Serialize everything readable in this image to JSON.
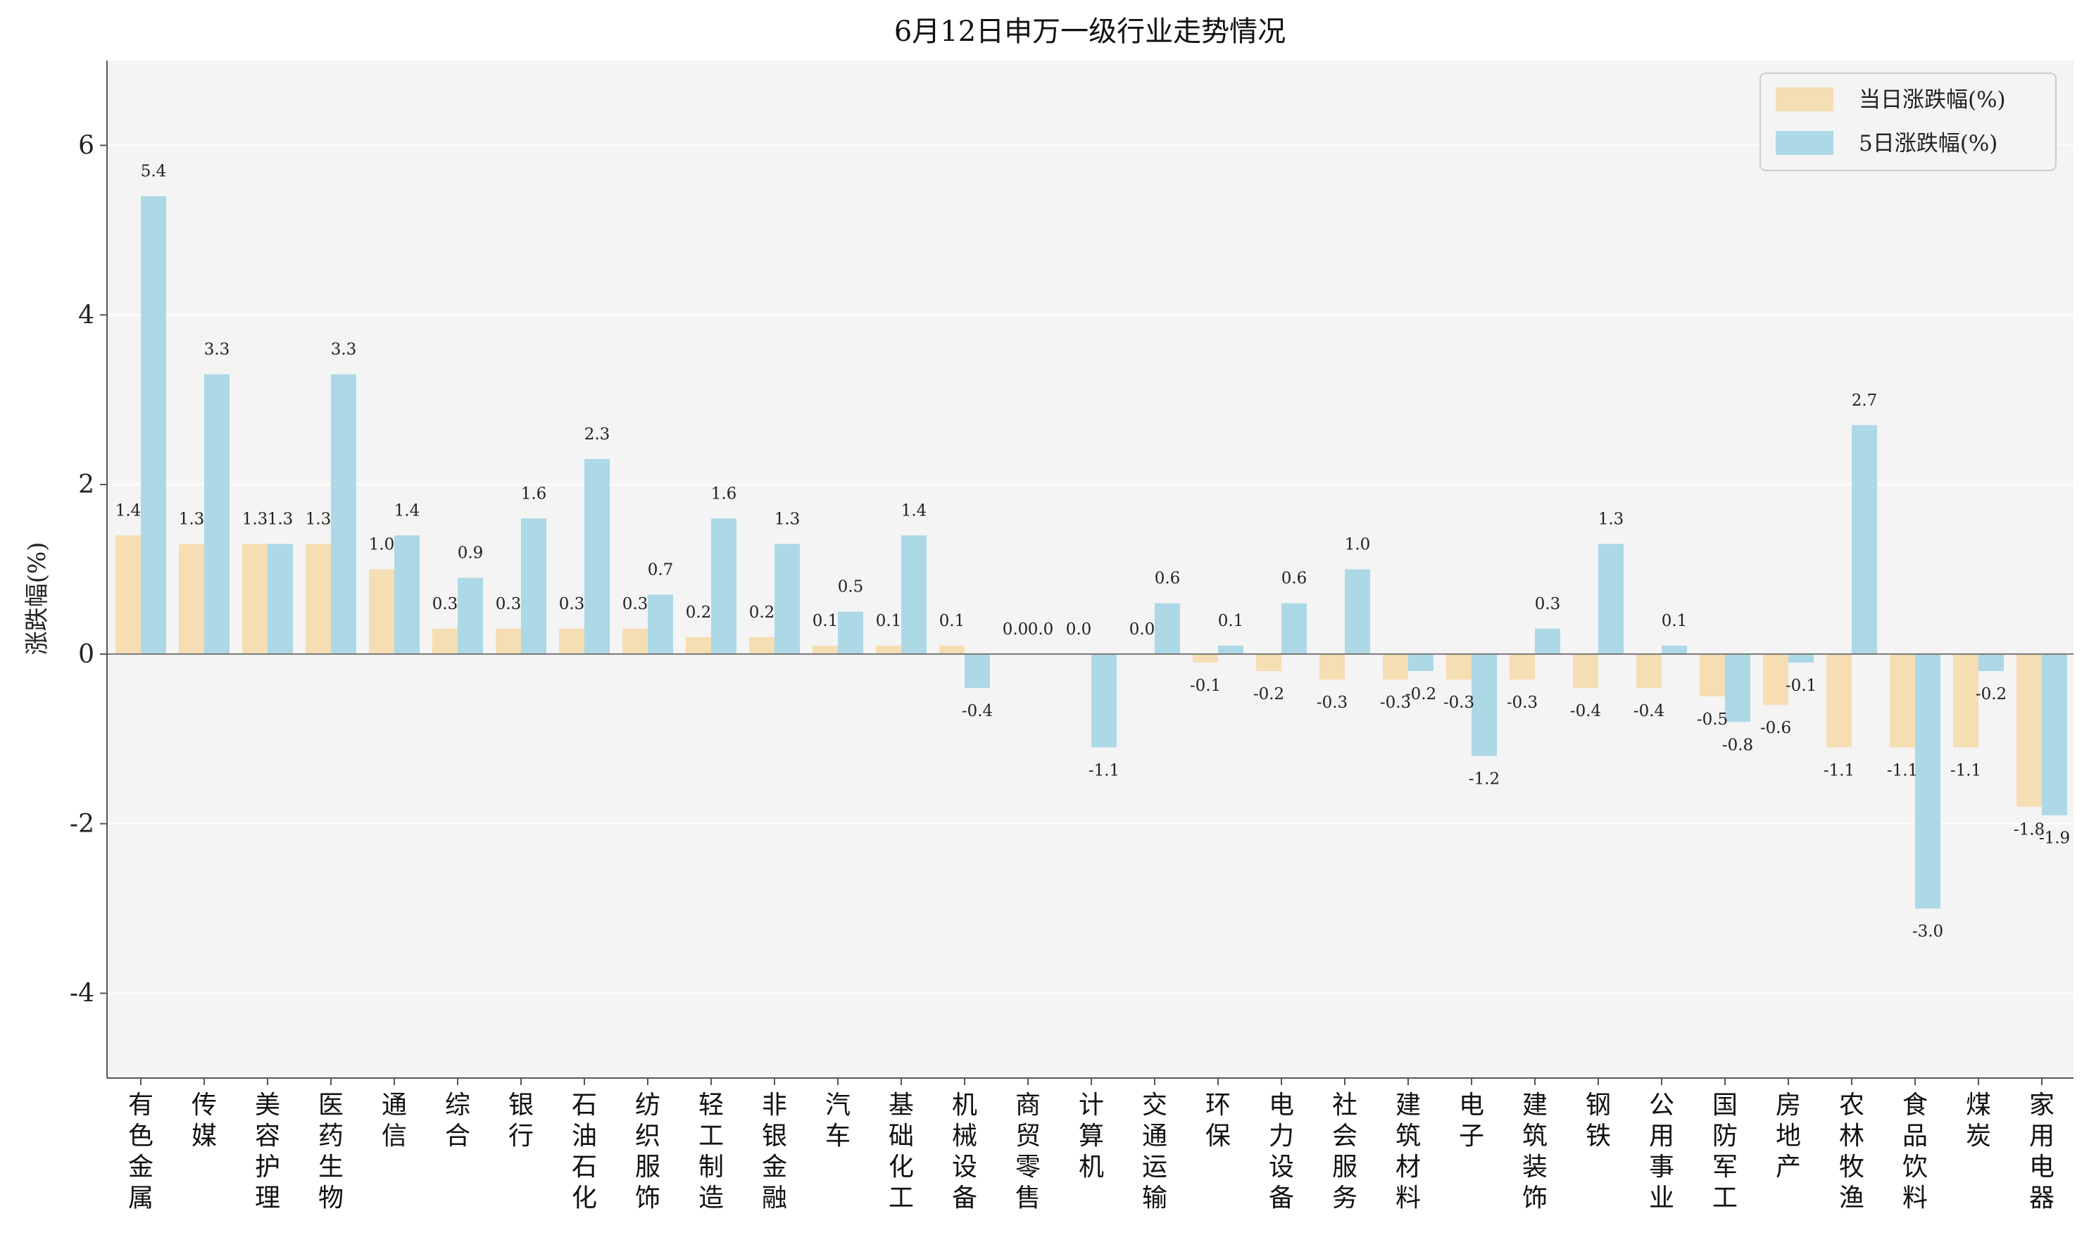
{
  "chart_data": {
    "type": "bar",
    "title": "6月12日申万一级行业走势情况",
    "ylabel": "涨跌幅(%)",
    "xlabel": "",
    "ylim": [
      -5,
      7
    ],
    "yticks": [
      -4,
      -2,
      0,
      2,
      4,
      6
    ],
    "grid": true,
    "legend_position": "top-right",
    "categories": [
      "有色金属",
      "传媒",
      "美容护理",
      "医药生物",
      "通信",
      "综合",
      "银行",
      "石油石化",
      "纺织服饰",
      "轻工制造",
      "非银金融",
      "汽车",
      "基础化工",
      "机械设备",
      "商贸零售",
      "计算机",
      "交通运输",
      "环保",
      "电力设备",
      "社会服务",
      "建筑材料",
      "电子",
      "建筑装饰",
      "钢铁",
      "公用事业",
      "国防军工",
      "房地产",
      "农林牧渔",
      "食品饮料",
      "煤炭",
      "家用电器"
    ],
    "series": [
      {
        "name": "当日涨跌幅(%)",
        "color": "#f5deb3",
        "values": [
          1.4,
          1.3,
          1.3,
          1.3,
          1.0,
          0.3,
          0.3,
          0.3,
          0.3,
          0.2,
          0.2,
          0.1,
          0.1,
          0.1,
          0.0,
          0.0,
          0.0,
          -0.1,
          -0.2,
          -0.3,
          -0.3,
          -0.3,
          -0.3,
          -0.4,
          -0.4,
          -0.5,
          -0.6,
          -1.1,
          -1.1,
          -1.1,
          -1.8
        ]
      },
      {
        "name": "5日涨跌幅(%)",
        "color": "#add8e6",
        "values": [
          5.4,
          3.3,
          1.3,
          3.3,
          1.4,
          0.9,
          1.6,
          2.3,
          0.7,
          1.6,
          1.3,
          0.5,
          1.4,
          -0.4,
          0.0,
          -1.1,
          0.6,
          0.1,
          0.6,
          1.0,
          -0.2,
          -1.2,
          0.3,
          1.3,
          0.1,
          -0.8,
          -0.1,
          2.7,
          -3.0,
          -0.2,
          -1.9
        ]
      }
    ],
    "plot_background": "#f4f4f4",
    "grid_color": "#ffffff",
    "axis_color": "#555555"
  }
}
